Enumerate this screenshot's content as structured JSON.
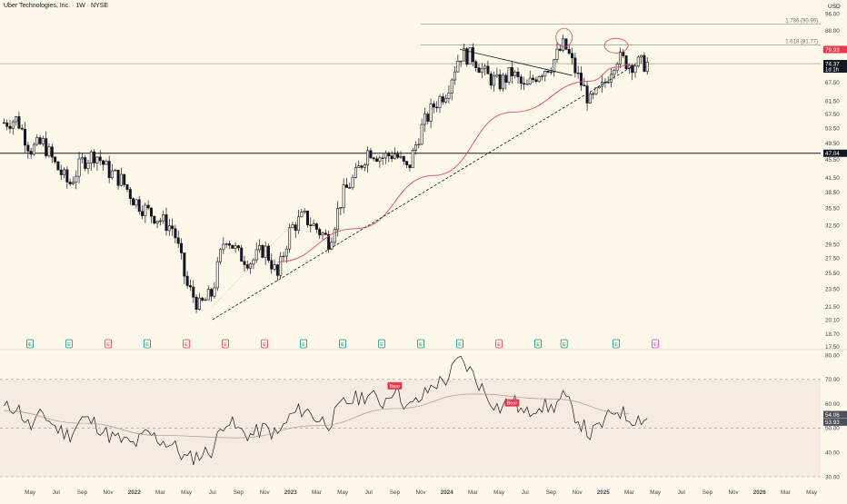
{
  "header": {
    "title": "Uber Technologies, Inc. · 1W · NYSE",
    "currency": "USD"
  },
  "colors": {
    "background": "#fdf8ea",
    "candle": "#131722",
    "ma_line": "#e8455b",
    "rsi_line": "#131722",
    "rsi_ma_line": "#b59490",
    "rsi_band_fill": "#f5ebe2",
    "bear_label": "#e8384f",
    "earnings_green": "#089981",
    "earnings_red": "#f23645",
    "earnings_upcoming": "#c83ff2",
    "price_badge_red": "#e8384f",
    "price_badge_dark": "#131722"
  },
  "chart_data": [
    {
      "type": "candlestick",
      "title": "Uber Technologies, Inc. · 1W · NYSE",
      "ylabel": "USD",
      "price_scale": {
        "ticks": [
          17.5,
          18.7,
          20.1,
          21.5,
          23.5,
          25.5,
          27.5,
          29.5,
          32.5,
          35.5,
          38.5,
          41.5,
          45.5,
          49.5,
          53.5,
          57.5,
          61.5,
          67.5,
          74.5,
          88.0,
          96.0
        ],
        "tick_labels": [
          "17.50",
          "18.70",
          "20.10",
          "21.50",
          "23.50",
          "25.50",
          "27.50",
          "29.50",
          "32.50",
          "35.50",
          "38.50",
          "41.50",
          "45.50",
          "49.50",
          "53.50",
          "57.50",
          "61.50",
          "67.50",
          "74.50",
          "88.00",
          "96.00"
        ]
      },
      "x_axis_labels": [
        "May",
        "Jul",
        "Sep",
        "Nov",
        "2022",
        "Mar",
        "May",
        "Jul",
        "Sep",
        "Nov",
        "2023",
        "Mar",
        "May",
        "Jul",
        "Sep",
        "Nov",
        "2024",
        "Mar",
        "May",
        "Jul",
        "Sep",
        "Nov",
        "2025",
        "Mar",
        "May",
        "Jul",
        "Sep",
        "Nov",
        "2026",
        "Mar",
        "May"
      ],
      "x_range": [
        "2021-03",
        "2026-05"
      ],
      "weekly_close": [
        [
          "2021-03-01",
          55.0
        ],
        [
          "2021-04-01",
          56.0
        ],
        [
          "2021-05-01",
          48.0
        ],
        [
          "2021-06-01",
          49.5
        ],
        [
          "2021-07-01",
          44.0
        ],
        [
          "2021-08-01",
          40.0
        ],
        [
          "2021-09-01",
          45.0
        ],
        [
          "2021-10-01",
          47.0
        ],
        [
          "2021-11-01",
          43.0
        ],
        [
          "2021-12-01",
          41.0
        ],
        [
          "2022-01-01",
          37.0
        ],
        [
          "2022-02-01",
          35.0
        ],
        [
          "2022-03-01",
          33.5
        ],
        [
          "2022-04-01",
          32.0
        ],
        [
          "2022-05-01",
          24.0
        ],
        [
          "2022-06-01",
          21.5
        ],
        [
          "2022-07-01",
          23.0
        ],
        [
          "2022-08-01",
          31.0
        ],
        [
          "2022-09-01",
          28.0
        ],
        [
          "2022-10-01",
          27.0
        ],
        [
          "2022-11-01",
          29.0
        ],
        [
          "2022-12-01",
          25.0
        ],
        [
          "2023-01-01",
          32.0
        ],
        [
          "2023-02-01",
          34.0
        ],
        [
          "2023-03-01",
          32.0
        ],
        [
          "2023-04-01",
          30.0
        ],
        [
          "2023-05-01",
          38.0
        ],
        [
          "2023-06-01",
          42.0
        ],
        [
          "2023-07-01",
          48.0
        ],
        [
          "2023-08-01",
          46.0
        ],
        [
          "2023-09-01",
          47.0
        ],
        [
          "2023-10-01",
          43.0
        ],
        [
          "2023-11-01",
          53.0
        ],
        [
          "2023-12-01",
          60.0
        ],
        [
          "2024-01-01",
          65.0
        ],
        [
          "2024-02-01",
          78.0
        ],
        [
          "2024-03-01",
          77.0
        ],
        [
          "2024-04-01",
          70.0
        ],
        [
          "2024-05-01",
          67.0
        ],
        [
          "2024-06-01",
          71.0
        ],
        [
          "2024-07-01",
          65.0
        ],
        [
          "2024-08-01",
          71.0
        ],
        [
          "2024-09-01",
          74.0
        ],
        [
          "2024-10-01",
          82.0
        ],
        [
          "2024-11-01",
          70.0
        ],
        [
          "2024-12-01",
          61.0
        ],
        [
          "2025-01-01",
          66.0
        ],
        [
          "2025-02-01",
          77.0
        ],
        [
          "2025-03-01",
          74.37
        ]
      ],
      "moving_average": {
        "points": [
          [
            "2022-12-01",
            27.0
          ],
          [
            "2023-06-01",
            32.0
          ],
          [
            "2023-12-01",
            42.0
          ],
          [
            "2024-06-01",
            58.0
          ],
          [
            "2024-12-01",
            68.0
          ],
          [
            "2025-02-01",
            73.0
          ],
          [
            "2025-03-01",
            74.0
          ]
        ]
      },
      "trendlines": [
        {
          "name": "support",
          "style": "dashed",
          "from": [
            "2022-07-01",
            20.1
          ],
          "to": [
            "2025-03-15",
            74.0
          ]
        },
        {
          "name": "descending",
          "style": "solid",
          "from": [
            "2024-02-01",
            80.0
          ],
          "to": [
            "2024-10-20",
            70.0
          ]
        },
        {
          "name": "dotted-guide",
          "style": "dotted",
          "from": [
            "2022-07-01",
            21.5
          ],
          "to": [
            "2023-01-01",
            32.5
          ]
        }
      ],
      "horizontal_levels": [
        {
          "value": 47.04,
          "label": "47.04",
          "span": "full"
        },
        {
          "value": 74.37,
          "label": "",
          "span": "full"
        },
        {
          "value": 81.77,
          "label": "1.618 (81.77)",
          "span": "right"
        },
        {
          "value": 90.99,
          "label": "1.786 (90.99)",
          "span": "right"
        }
      ],
      "price_badges": [
        {
          "value": 79.93,
          "label": "79.93",
          "color": "red"
        },
        {
          "value": 74.37,
          "label": "74.37",
          "sublabel": "1d 1h",
          "color": "dark"
        },
        {
          "value": 47.04,
          "label": "47.04",
          "color": "dark"
        }
      ],
      "annotations": [
        {
          "kind": "circle",
          "at": [
            "2024-10-01",
            85.0
          ]
        },
        {
          "kind": "circle",
          "at": [
            "2025-02-01",
            81.5
          ]
        }
      ],
      "earnings_markers": [
        {
          "date": "2021-05-05",
          "result": "E",
          "beat": true
        },
        {
          "date": "2021-08-04",
          "result": "E",
          "beat": true
        },
        {
          "date": "2021-11-04",
          "result": "E",
          "beat": false
        },
        {
          "date": "2022-02-09",
          "result": "E",
          "beat": true
        },
        {
          "date": "2022-05-04",
          "result": "E",
          "beat": false
        },
        {
          "date": "2022-08-02",
          "result": "E",
          "beat": false
        },
        {
          "date": "2022-11-01",
          "result": "E",
          "beat": false
        },
        {
          "date": "2023-02-08",
          "result": "E",
          "beat": true
        },
        {
          "date": "2023-05-02",
          "result": "E",
          "beat": true
        },
        {
          "date": "2023-08-01",
          "result": "E",
          "beat": true
        },
        {
          "date": "2023-11-07",
          "result": "E",
          "beat": true
        },
        {
          "date": "2024-02-07",
          "result": "E",
          "beat": true
        },
        {
          "date": "2024-05-08",
          "result": "E",
          "beat": false
        },
        {
          "date": "2024-08-06",
          "result": "E",
          "beat": true
        },
        {
          "date": "2024-10-31",
          "result": "E",
          "beat": true
        },
        {
          "date": "2025-02-05",
          "result": "E",
          "beat": true
        },
        {
          "date": "2025-05-07",
          "result": "E",
          "beat": null
        }
      ]
    },
    {
      "type": "line",
      "title": "",
      "ylim": [
        30,
        80
      ],
      "y_ticks": [
        30.0,
        40.0,
        50.0,
        60.0,
        70.0,
        80.0
      ],
      "y_tick_labels": [
        "30.00",
        "40.00",
        "50.00",
        "60.00",
        "70.00",
        "80.00"
      ],
      "bands": [
        30,
        50,
        70
      ],
      "value_badges": [
        {
          "value": 54.06,
          "label": "54.06"
        },
        {
          "value": 53.93,
          "label": "53.93"
        }
      ],
      "divergence_labels": [
        {
          "text": "Bear",
          "at": [
            "2023-09-15",
            67.0
          ]
        },
        {
          "text": "Bear",
          "at": [
            "2024-06-20",
            60.0
          ]
        }
      ],
      "rsi": [
        [
          "2021-03-01",
          58
        ],
        [
          "2021-04-01",
          59
        ],
        [
          "2021-05-01",
          50
        ],
        [
          "2021-06-01",
          56
        ],
        [
          "2021-07-01",
          50
        ],
        [
          "2021-08-01",
          47
        ],
        [
          "2021-09-01",
          54
        ],
        [
          "2021-10-01",
          52
        ],
        [
          "2021-11-01",
          47
        ],
        [
          "2021-12-01",
          45
        ],
        [
          "2022-01-01",
          43
        ],
        [
          "2022-02-01",
          48
        ],
        [
          "2022-03-01",
          45
        ],
        [
          "2022-04-01",
          43
        ],
        [
          "2022-05-01",
          37
        ],
        [
          "2022-06-01",
          39
        ],
        [
          "2022-07-01",
          41
        ],
        [
          "2022-08-01",
          54
        ],
        [
          "2022-09-01",
          49
        ],
        [
          "2022-10-01",
          47
        ],
        [
          "2022-11-01",
          50
        ],
        [
          "2022-12-01",
          47
        ],
        [
          "2023-01-01",
          55
        ],
        [
          "2023-02-01",
          58
        ],
        [
          "2023-03-01",
          54
        ],
        [
          "2023-04-01",
          52
        ],
        [
          "2023-05-01",
          60
        ],
        [
          "2023-06-01",
          62
        ],
        [
          "2023-07-01",
          64
        ],
        [
          "2023-08-01",
          60
        ],
        [
          "2023-09-01",
          67
        ],
        [
          "2023-10-01",
          58
        ],
        [
          "2023-11-01",
          62
        ],
        [
          "2023-12-01",
          68
        ],
        [
          "2024-01-01",
          70
        ],
        [
          "2024-02-01",
          79
        ],
        [
          "2024-03-01",
          72
        ],
        [
          "2024-04-01",
          64
        ],
        [
          "2024-05-01",
          58
        ],
        [
          "2024-06-01",
          62
        ],
        [
          "2024-07-01",
          55
        ],
        [
          "2024-08-01",
          60
        ],
        [
          "2024-09-01",
          58
        ],
        [
          "2024-10-01",
          63
        ],
        [
          "2024-11-01",
          54
        ],
        [
          "2024-12-01",
          47
        ],
        [
          "2025-01-01",
          52
        ],
        [
          "2025-02-01",
          58
        ],
        [
          "2025-03-01",
          54
        ]
      ],
      "rsi_ma": [
        [
          "2021-03-01",
          57
        ],
        [
          "2021-09-01",
          52
        ],
        [
          "2022-03-01",
          47
        ],
        [
          "2022-09-01",
          46
        ],
        [
          "2023-03-01",
          51
        ],
        [
          "2023-09-01",
          58
        ],
        [
          "2024-03-01",
          64
        ],
        [
          "2024-09-01",
          62
        ],
        [
          "2025-03-01",
          56
        ]
      ]
    }
  ]
}
